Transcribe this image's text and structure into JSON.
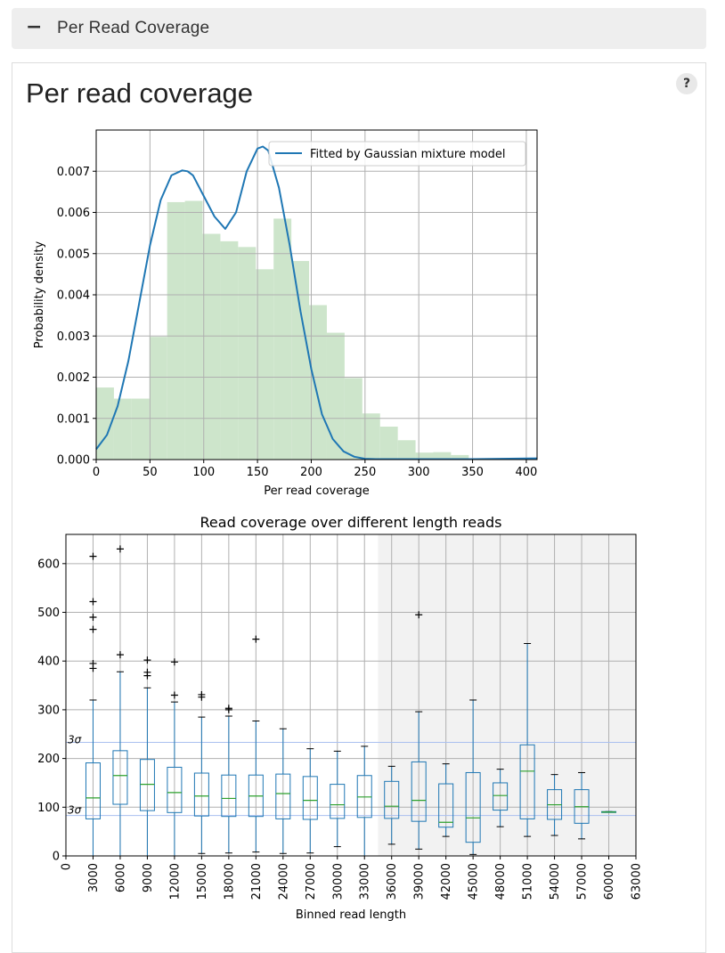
{
  "section": {
    "toggle_symbol": "−",
    "title": "Per Read Coverage"
  },
  "panel": {
    "title": "Per read coverage",
    "help_label": "?"
  },
  "colors": {
    "hist": "#cde5cb",
    "curve": "#1f77b4",
    "box": "#1f77b4",
    "median": "#2ca02c",
    "shade": "#f2f2f2",
    "sigma": "#aac0f0"
  },
  "chart_data": [
    {
      "type": "area",
      "xlabel": "Per read coverage",
      "ylabel": "Probability density",
      "xlim": [
        0,
        410
      ],
      "ylim": [
        0,
        0.008
      ],
      "xticks": [
        "0",
        "50",
        "100",
        "150",
        "200",
        "250",
        "300",
        "350",
        "400"
      ],
      "yticks": [
        "0.000",
        "0.001",
        "0.002",
        "0.003",
        "0.004",
        "0.005",
        "0.006",
        "0.007"
      ],
      "grid": true,
      "legend": {
        "position": "top-right",
        "entries": [
          "Fitted by Gaussian mixture model"
        ]
      },
      "histogram": {
        "bin_width": 16.5,
        "bin_starts": [
          0,
          16.5,
          33,
          49.5,
          66,
          82.5,
          99,
          115.5,
          132,
          148.5,
          165,
          181.5,
          198,
          214.5,
          231,
          247.5,
          264,
          280.5,
          297,
          313.5,
          330,
          346.5,
          363,
          379.5,
          396
        ],
        "values": [
          0.00175,
          0.00148,
          0.00148,
          0.00298,
          0.00625,
          0.00628,
          0.00548,
          0.0053,
          0.00516,
          0.00462,
          0.00585,
          0.00482,
          0.00375,
          0.00308,
          0.00198,
          0.00112,
          0.0008,
          0.00047,
          0.00017,
          0.00018,
          0.00011,
          2e-05,
          1e-05,
          1e-05,
          1e-05
        ]
      },
      "series": [
        {
          "name": "Fitted by Gaussian mixture model",
          "x": [
            0,
            10,
            20,
            30,
            40,
            50,
            60,
            70,
            80,
            85,
            90,
            100,
            110,
            120,
            130,
            140,
            150,
            155,
            160,
            170,
            180,
            190,
            200,
            210,
            220,
            230,
            240,
            250,
            260,
            280,
            300,
            350,
            410
          ],
          "y": [
            0.00025,
            0.0006,
            0.0013,
            0.0024,
            0.0038,
            0.0052,
            0.0063,
            0.0069,
            0.00702,
            0.007,
            0.0069,
            0.0064,
            0.0059,
            0.0056,
            0.006,
            0.007,
            0.00755,
            0.0076,
            0.0075,
            0.0066,
            0.0052,
            0.0036,
            0.0022,
            0.0011,
            0.0005,
            0.0002,
            7e-05,
            2e-05,
            1e-05,
            1e-05,
            1e-05,
            1e-05,
            3e-05
          ]
        }
      ]
    },
    {
      "type": "box",
      "title": "Read coverage over different length reads",
      "xlabel": "Binned read length",
      "xlim": [
        0,
        63000
      ],
      "ylim": [
        0,
        660
      ],
      "xticks": [
        "0",
        "3000",
        "6000",
        "9000",
        "12000",
        "15000",
        "18000",
        "21000",
        "24000",
        "27000",
        "30000",
        "33000",
        "36000",
        "39000",
        "42000",
        "45000",
        "48000",
        "51000",
        "54000",
        "57000",
        "60000",
        "63000"
      ],
      "yticks": [
        "0",
        "100",
        "200",
        "300",
        "400",
        "500",
        "600"
      ],
      "grid": true,
      "shaded_region": [
        34500,
        63000
      ],
      "reference_lines": [
        {
          "label": "3σ",
          "y": 233
        },
        {
          "label": "3σ",
          "y": 83
        }
      ],
      "boxes": [
        {
          "x": 3000,
          "whislo": 0,
          "q1": 76,
          "med": 119,
          "q3": 191,
          "whishi": 320,
          "fliers": [
            385,
            395,
            465,
            490,
            522,
            615
          ]
        },
        {
          "x": 6000,
          "whislo": 0,
          "q1": 106,
          "med": 165,
          "q3": 216,
          "whishi": 378,
          "fliers": [
            413,
            630
          ]
        },
        {
          "x": 9000,
          "whislo": 0,
          "q1": 93,
          "med": 147,
          "q3": 198,
          "whishi": 345,
          "fliers": [
            370,
            377,
            402
          ]
        },
        {
          "x": 12000,
          "whislo": 0,
          "q1": 89,
          "med": 130,
          "q3": 182,
          "whishi": 316,
          "fliers": [
            330,
            398
          ]
        },
        {
          "x": 15000,
          "whislo": 5,
          "q1": 82,
          "med": 123,
          "q3": 170,
          "whishi": 285,
          "fliers": [
            326,
            331
          ]
        },
        {
          "x": 18000,
          "whislo": 6,
          "q1": 81,
          "med": 118,
          "q3": 166,
          "whishi": 287,
          "fliers": [
            300,
            303
          ]
        },
        {
          "x": 21000,
          "whislo": 8,
          "q1": 81,
          "med": 123,
          "q3": 166,
          "whishi": 277,
          "fliers": [
            445
          ]
        },
        {
          "x": 24000,
          "whislo": 5,
          "q1": 76,
          "med": 128,
          "q3": 168,
          "whishi": 261,
          "fliers": []
        },
        {
          "x": 27000,
          "whislo": 6,
          "q1": 75,
          "med": 114,
          "q3": 163,
          "whishi": 220,
          "fliers": []
        },
        {
          "x": 30000,
          "whislo": 19,
          "q1": 77,
          "med": 105,
          "q3": 147,
          "whishi": 215,
          "fliers": []
        },
        {
          "x": 33000,
          "whislo": 0,
          "q1": 79,
          "med": 121,
          "q3": 165,
          "whishi": 225,
          "fliers": []
        },
        {
          "x": 36000,
          "whislo": 24,
          "q1": 77,
          "med": 102,
          "q3": 153,
          "whishi": 184,
          "fliers": []
        },
        {
          "x": 39000,
          "whislo": 14,
          "q1": 71,
          "med": 114,
          "q3": 193,
          "whishi": 296,
          "fliers": [
            495
          ]
        },
        {
          "x": 42000,
          "whislo": 40,
          "q1": 59,
          "med": 69,
          "q3": 148,
          "whishi": 189,
          "fliers": []
        },
        {
          "x": 45000,
          "whislo": 3,
          "q1": 28,
          "med": 78,
          "q3": 171,
          "whishi": 320,
          "fliers": []
        },
        {
          "x": 48000,
          "whislo": 60,
          "q1": 94,
          "med": 124,
          "q3": 150,
          "whishi": 178,
          "fliers": []
        },
        {
          "x": 51000,
          "whislo": 40,
          "q1": 76,
          "med": 174,
          "q3": 228,
          "whishi": 436,
          "fliers": []
        },
        {
          "x": 54000,
          "whislo": 42,
          "q1": 75,
          "med": 105,
          "q3": 136,
          "whishi": 167,
          "fliers": []
        },
        {
          "x": 57000,
          "whislo": 35,
          "q1": 67,
          "med": 101,
          "q3": 136,
          "whishi": 171,
          "fliers": []
        },
        {
          "x": 60000,
          "whislo": 90,
          "q1": 90,
          "med": 90,
          "q3": 91,
          "whishi": 91,
          "fliers": []
        }
      ]
    }
  ]
}
